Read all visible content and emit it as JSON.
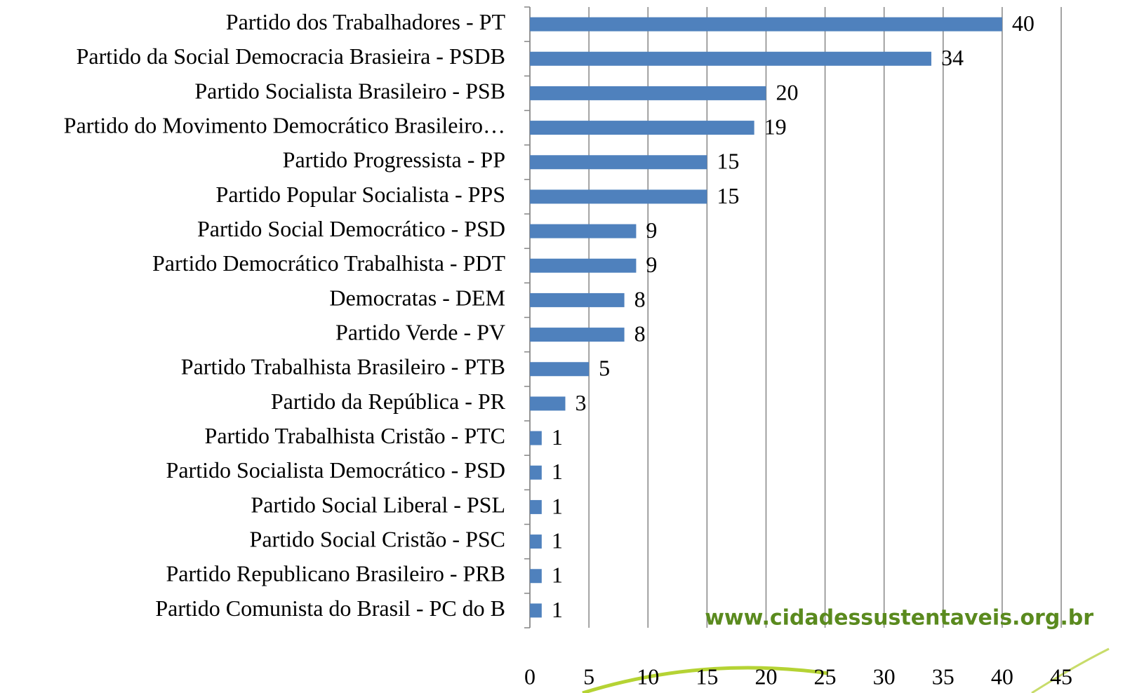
{
  "chart_data": {
    "type": "bar",
    "orientation": "horizontal",
    "categories": [
      "Partido dos Trabalhadores - PT",
      "Partido da Social Democracia Brasieira - PSDB",
      "Partido Socialista Brasileiro - PSB",
      "Partido do Movimento Democrático Brasileiro…",
      "Partido Progressista - PP",
      "Partido Popular Socialista - PPS",
      "Partido Social Democrático - PSD",
      "Partido Democrático Trabalhista - PDT",
      "Democratas - DEM",
      "Partido Verde - PV",
      "Partido Trabalhista Brasileiro - PTB",
      "Partido da República - PR",
      "Partido Trabalhista Cristão - PTC",
      "Partido Socialista Democrático - PSD",
      "Partido Social Liberal - PSL",
      "Partido Social Cristão - PSC",
      "Partido Republicano Brasileiro - PRB",
      "Partido Comunista do Brasil - PC do B"
    ],
    "values": [
      40,
      34,
      20,
      19,
      15,
      15,
      9,
      9,
      8,
      8,
      5,
      3,
      1,
      1,
      1,
      1,
      1,
      1
    ],
    "color": "#4f81bd",
    "xlim": [
      0,
      45
    ],
    "xticks": [
      0,
      5,
      10,
      15,
      20,
      25,
      30,
      35,
      40,
      45
    ],
    "grid": true,
    "watermark": "www.cidadessustentaveis.org.br"
  }
}
